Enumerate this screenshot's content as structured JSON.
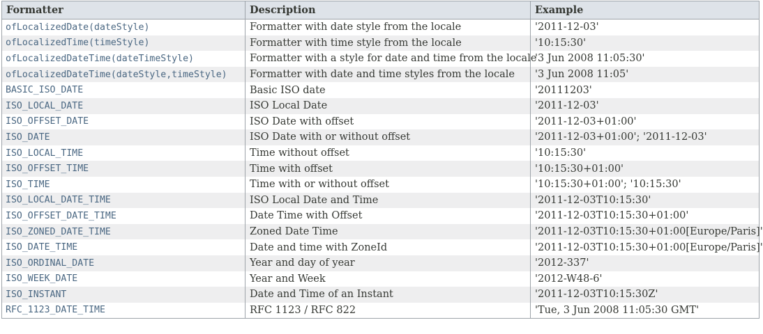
{
  "table": {
    "headers": {
      "formatter": "Formatter",
      "description": "Description",
      "example": "Example"
    },
    "rows": [
      {
        "formatter": "ofLocalizedDate(dateStyle)",
        "description": "Formatter with date style from the locale",
        "example": "'2011-12-03'"
      },
      {
        "formatter": "ofLocalizedTime(timeStyle)",
        "description": "Formatter with time style from the locale",
        "example": "'10:15:30'"
      },
      {
        "formatter": "ofLocalizedDateTime(dateTimeStyle)",
        "description": "Formatter with a style for date and time from the locale",
        "example": "'3 Jun 2008 11:05:30'"
      },
      {
        "formatter": "ofLocalizedDateTime(dateStyle,timeStyle)",
        "description": "Formatter with date and time styles from the locale",
        "example": "'3 Jun 2008 11:05'"
      },
      {
        "formatter": "BASIC_ISO_DATE",
        "description": "Basic ISO date",
        "example": "'20111203'"
      },
      {
        "formatter": "ISO_LOCAL_DATE",
        "description": "ISO Local Date",
        "example": "'2011-12-03'"
      },
      {
        "formatter": "ISO_OFFSET_DATE",
        "description": "ISO Date with offset",
        "example": "'2011-12-03+01:00'"
      },
      {
        "formatter": "ISO_DATE",
        "description": "ISO Date with or without offset",
        "example": "'2011-12-03+01:00'; '2011-12-03'"
      },
      {
        "formatter": "ISO_LOCAL_TIME",
        "description": "Time without offset",
        "example": "'10:15:30'"
      },
      {
        "formatter": "ISO_OFFSET_TIME",
        "description": "Time with offset",
        "example": "'10:15:30+01:00'"
      },
      {
        "formatter": "ISO_TIME",
        "description": "Time with or without offset",
        "example": "'10:15:30+01:00'; '10:15:30'"
      },
      {
        "formatter": "ISO_LOCAL_DATE_TIME",
        "description": "ISO Local Date and Time",
        "example": "'2011-12-03T10:15:30'"
      },
      {
        "formatter": "ISO_OFFSET_DATE_TIME",
        "description": "Date Time with Offset",
        "example": "'2011-12-03T10:15:30+01:00'"
      },
      {
        "formatter": "ISO_ZONED_DATE_TIME",
        "description": "Zoned Date Time",
        "example": "'2011-12-03T10:15:30+01:00[Europe/Paris]'"
      },
      {
        "formatter": "ISO_DATE_TIME",
        "description": "Date and time with ZoneId",
        "example": "'2011-12-03T10:15:30+01:00[Europe/Paris]'"
      },
      {
        "formatter": "ISO_ORDINAL_DATE",
        "description": "Year and day of year",
        "example": "'2012-337'"
      },
      {
        "formatter": "ISO_WEEK_DATE",
        "description": "Year and Week",
        "example": "'2012-W48-6'"
      },
      {
        "formatter": "ISO_INSTANT",
        "description": "Date and Time of an Instant",
        "example": "'2011-12-03T10:15:30Z'"
      },
      {
        "formatter": "RFC_1123_DATE_TIME",
        "description": "RFC 1123 / RFC 822",
        "example": "'Tue, 3 Jun 2008 11:05:30 GMT'"
      }
    ]
  },
  "colors": {
    "header_bg": "#dee3e9",
    "stripe_bg": "#eeeeef",
    "border": "#9da3a9",
    "link": "#4a6782",
    "text": "#353833"
  }
}
